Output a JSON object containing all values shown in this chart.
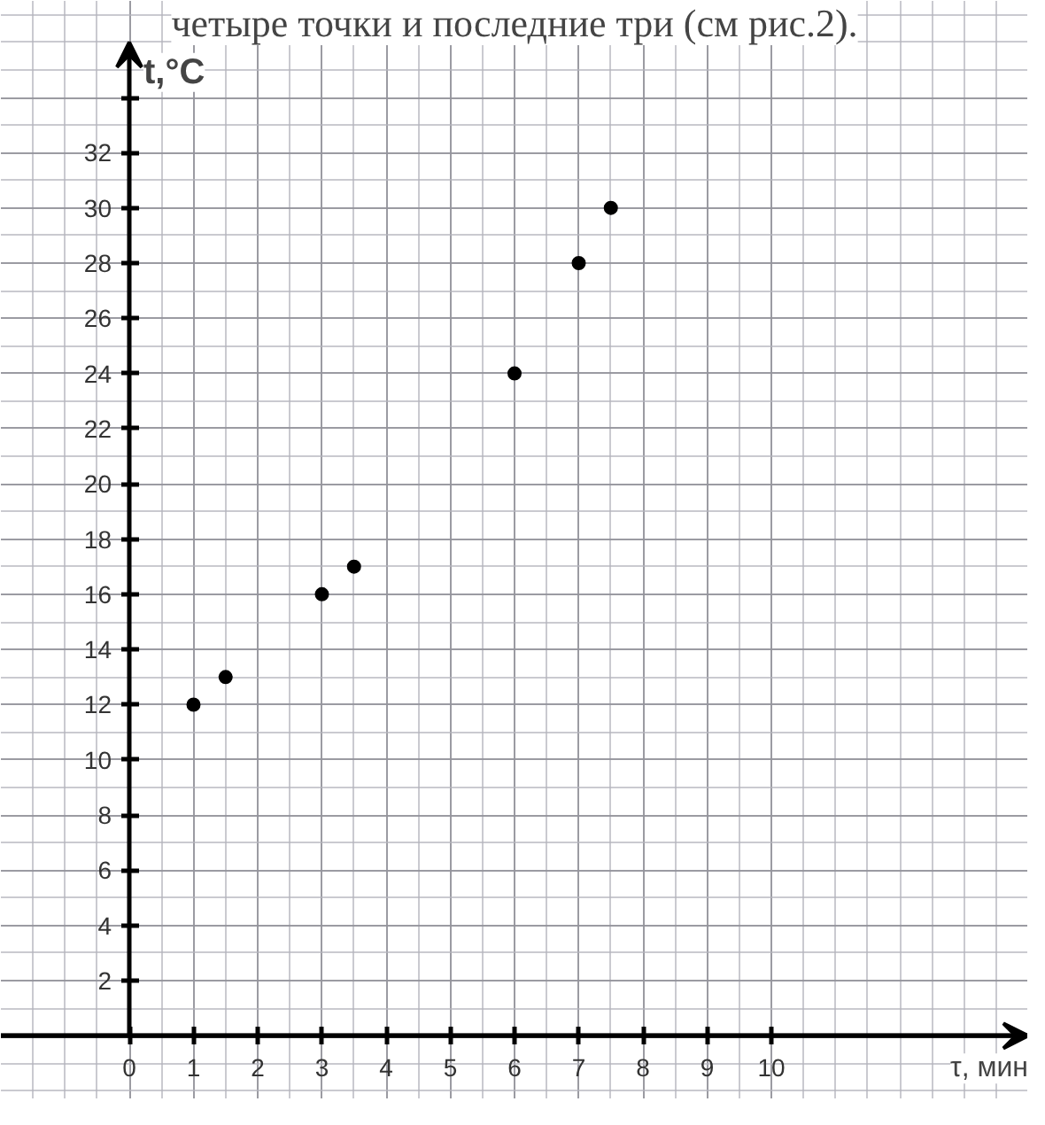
{
  "chart_data": {
    "type": "scatter",
    "xlabel": "τ, мин",
    "ylabel": "t,°C",
    "annotations": [
      "четыре точки и последние три (см рис.2)."
    ],
    "x": [
      1,
      1.5,
      3,
      3.5,
      6,
      7,
      7.5
    ],
    "series": [
      {
        "color": "#000000",
        "values": [
          12,
          13,
          16,
          17,
          24,
          28,
          30
        ]
      }
    ],
    "xlim": [
      -2,
      14
    ],
    "ylim": [
      -2.3,
      37.5
    ],
    "xticks": [
      0,
      1,
      2,
      3,
      4,
      5,
      6,
      7,
      8,
      9,
      10
    ],
    "yticks": [
      2,
      4,
      6,
      8,
      10,
      12,
      14,
      16,
      18,
      20,
      22,
      24,
      26,
      28,
      30,
      32,
      {
        "value": 34,
        "label": null
      }
    ],
    "grid": true,
    "marker": "circle"
  }
}
